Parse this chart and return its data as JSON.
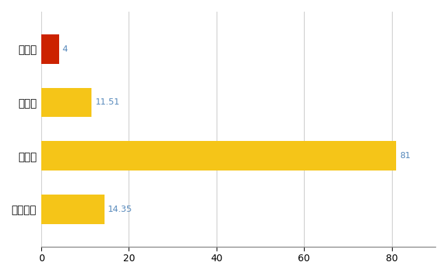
{
  "categories": [
    "邑楽町",
    "県平均",
    "県最大",
    "全国平均"
  ],
  "values": [
    4,
    11.51,
    81,
    14.35
  ],
  "bar_colors": [
    "#cc2200",
    "#f5c518",
    "#f5c518",
    "#f5c518"
  ],
  "label_texts": [
    "4",
    "11.51",
    "81",
    "14.35"
  ],
  "xlim": [
    0,
    90
  ],
  "xticks": [
    0,
    20,
    40,
    60,
    80
  ],
  "background_color": "#ffffff",
  "grid_color": "#cccccc",
  "bar_height": 0.55,
  "label_color": "#5588bb",
  "label_fontsize": 9,
  "ytick_fontsize": 11
}
